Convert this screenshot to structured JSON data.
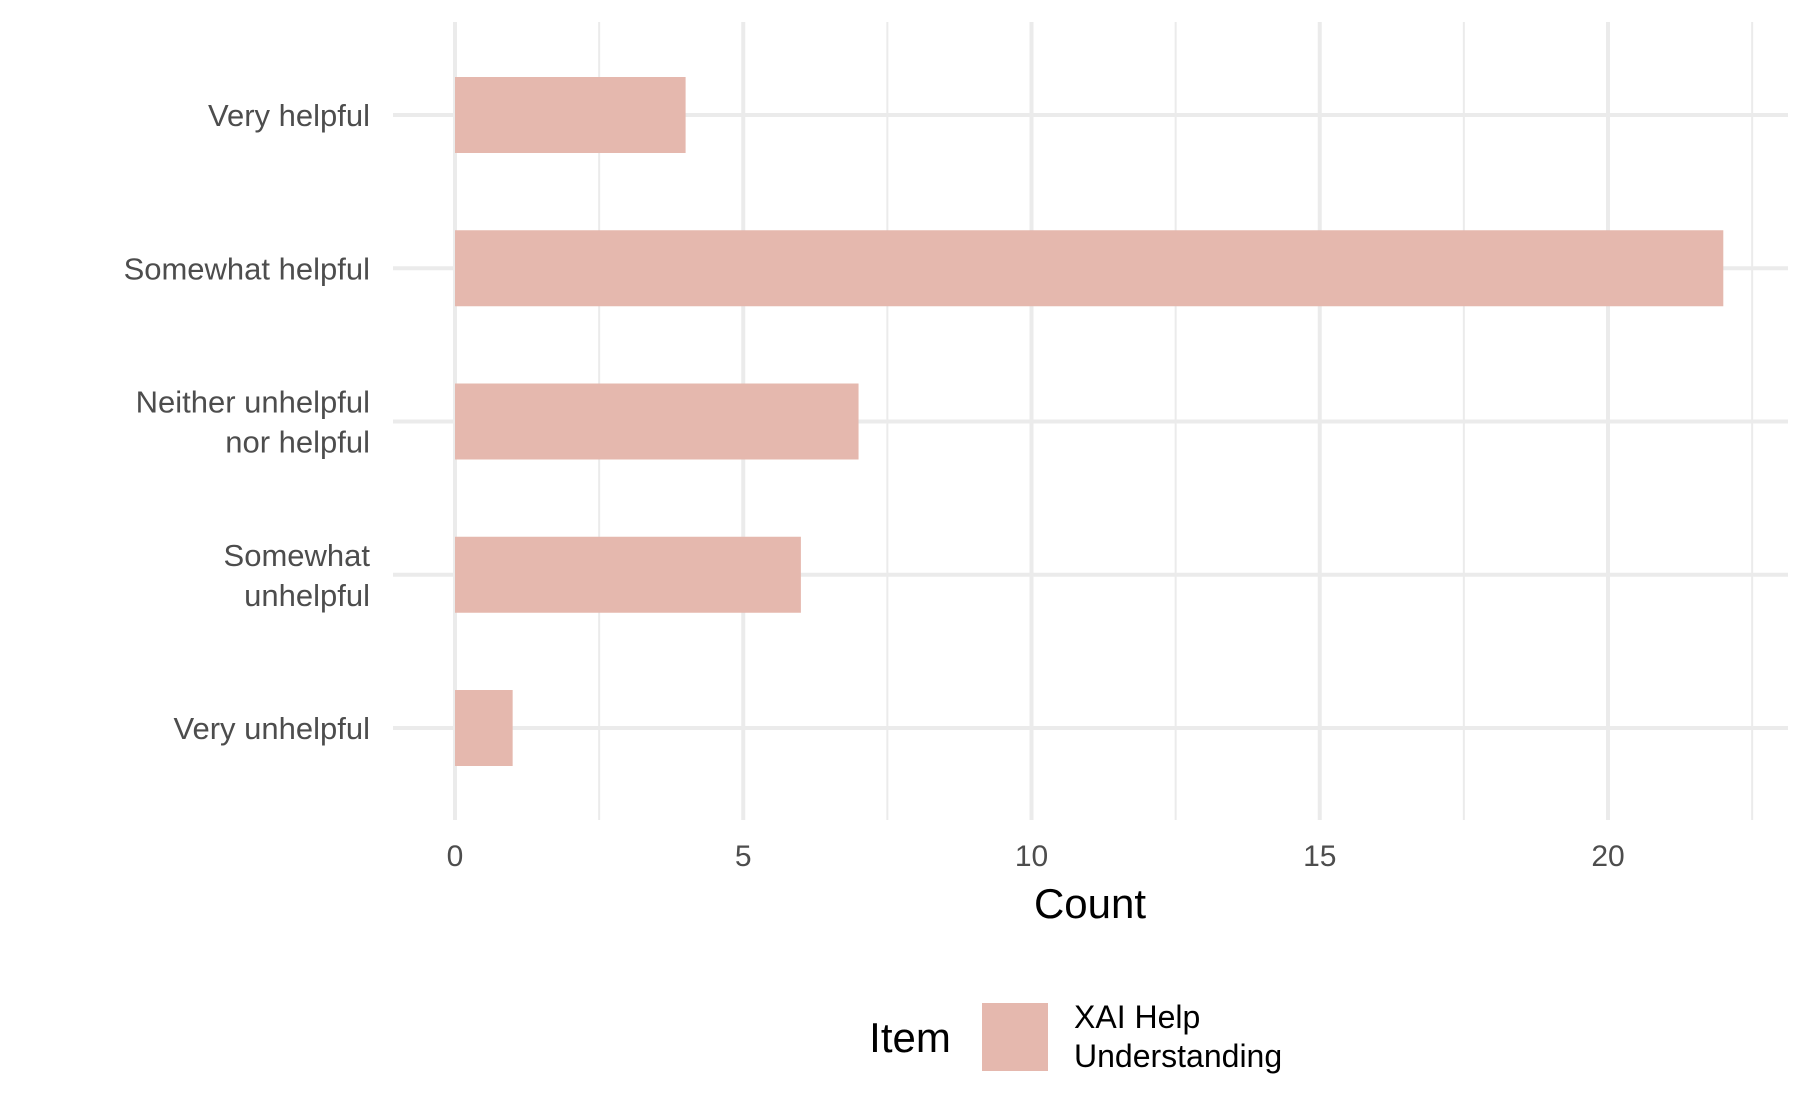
{
  "chart_data": {
    "type": "bar",
    "orientation": "horizontal",
    "categories": [
      [
        "Very helpful"
      ],
      [
        "Somewhat helpful"
      ],
      [
        "Neither unhelpful",
        "nor helpful"
      ],
      [
        "Somewhat",
        "unhelpful"
      ],
      [
        "Very unhelpful"
      ]
    ],
    "series": [
      {
        "name": "XAI Help Understanding",
        "name_lines": [
          "XAI Help",
          "Understanding"
        ],
        "values": [
          4,
          22,
          7,
          6,
          1
        ],
        "color": "#e5b8ae"
      }
    ],
    "title": "",
    "xlabel": "Count",
    "ylabel": "",
    "xlim": [
      0,
      23
    ],
    "xticks": [
      0,
      5,
      10,
      15,
      20
    ],
    "grid": true,
    "legend": {
      "title": "Item",
      "position": "bottom"
    },
    "colors": {
      "gridline": "#ebebeb",
      "background": "#ffffff"
    }
  }
}
